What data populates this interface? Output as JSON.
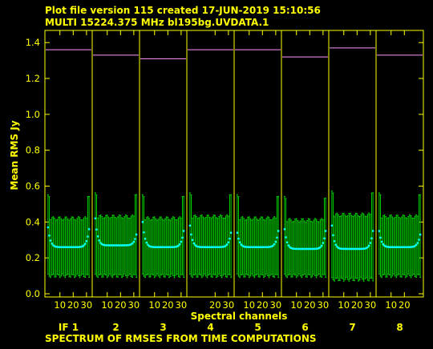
{
  "header": {
    "line1": "Plot file version 115  created 17-JUN-2019 15:10:56",
    "line2": "MULTI 15224.375 MHz  bl195bg.UVDATA.1"
  },
  "footer": "SPECTRUM OF RMSES FROM TIME COMPUTATIONS",
  "colors": {
    "background": "#000000",
    "axes": "#ffff00",
    "errorbar": "#00cc00",
    "point": "#00ffff",
    "refline": "#ff99ff"
  },
  "chart_data": {
    "type": "scatter",
    "title": "",
    "xlabel": "Spectral channels",
    "ylabel": "Mean RMS Jy",
    "ylim": [
      0,
      1.45
    ],
    "yticks": [
      0.0,
      0.2,
      0.4,
      0.6,
      0.8,
      1.0,
      1.2,
      1.4
    ],
    "ytick_labels": [
      "0.0",
      "0.2",
      "0.4",
      "0.6",
      "0.8",
      "1.0",
      "1.2",
      "1.4"
    ],
    "channels_per_if": 32,
    "panels": [
      {
        "if_label": "IF 1",
        "xticks": [
          10,
          20,
          30
        ],
        "xtick_labels": [
          "10",
          "20",
          "30"
        ],
        "ref_level": 1.36,
        "rms_edge_left": 0.37,
        "rms_edge_right": 0.36,
        "rms_floor": 0.26,
        "err_lo": 0.1,
        "err_hi": 0.42
      },
      {
        "if_label": "2",
        "xticks": [
          10,
          20,
          30
        ],
        "xtick_labels": [
          "10",
          "20",
          "30"
        ],
        "ref_level": 1.33,
        "rms_edge_left": 0.42,
        "rms_edge_right": 0.33,
        "rms_floor": 0.27,
        "err_lo": 0.1,
        "err_hi": 0.43
      },
      {
        "if_label": "3",
        "xticks": [
          10,
          20,
          30
        ],
        "xtick_labels": [
          "10",
          "20",
          "30"
        ],
        "ref_level": 1.31,
        "rms_edge_left": 0.4,
        "rms_edge_right": 0.35,
        "rms_floor": 0.26,
        "err_lo": 0.1,
        "err_hi": 0.42
      },
      {
        "if_label": "4",
        "xticks": [
          20,
          30
        ],
        "xtick_labels": [
          "20",
          "30"
        ],
        "ref_level": 1.36,
        "rms_edge_left": 0.38,
        "rms_edge_right": 0.34,
        "rms_floor": 0.26,
        "err_lo": 0.1,
        "err_hi": 0.43
      },
      {
        "if_label": "5",
        "xticks": [
          10,
          20,
          30
        ],
        "xtick_labels": [
          "10",
          "20",
          "30"
        ],
        "ref_level": 1.36,
        "rms_edge_left": 0.34,
        "rms_edge_right": 0.35,
        "rms_floor": 0.26,
        "err_lo": 0.1,
        "err_hi": 0.42
      },
      {
        "if_label": "6",
        "xticks": [
          10,
          20,
          30
        ],
        "xtick_labels": [
          "10",
          "20",
          "30"
        ],
        "ref_level": 1.32,
        "rms_edge_left": 0.36,
        "rms_edge_right": 0.35,
        "rms_floor": 0.25,
        "err_lo": 0.1,
        "err_hi": 0.41
      },
      {
        "if_label": "7",
        "xticks": [
          10,
          20,
          30
        ],
        "xtick_labels": [
          "10",
          "20",
          "30"
        ],
        "ref_level": 1.37,
        "rms_edge_left": 0.38,
        "rms_edge_right": 0.35,
        "rms_floor": 0.25,
        "err_lo": 0.08,
        "err_hi": 0.44
      },
      {
        "if_label": "8",
        "xticks": [
          10,
          20
        ],
        "xtick_labels": [
          "10",
          "20"
        ],
        "ref_level": 1.33,
        "rms_edge_left": 0.35,
        "rms_edge_right": 0.33,
        "rms_floor": 0.26,
        "err_lo": 0.1,
        "err_hi": 0.43
      }
    ]
  }
}
